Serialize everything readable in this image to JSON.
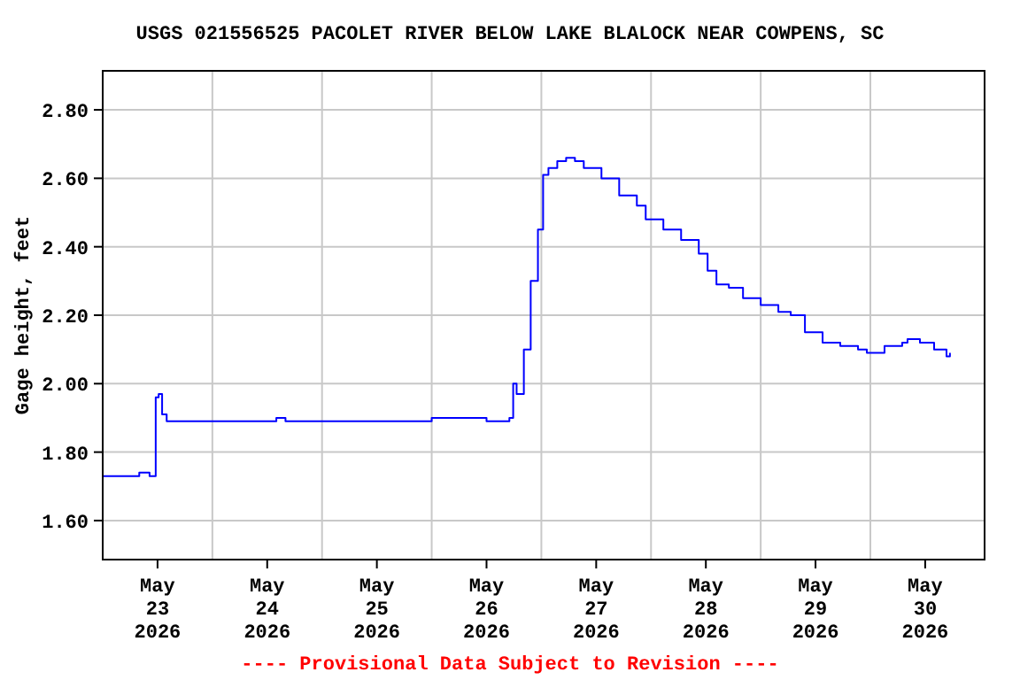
{
  "chart_data": {
    "type": "step",
    "title": "USGS 021556525 PACOLET RIVER BELOW LAKE BLALOCK NEAR COWPENS, SC",
    "ylabel": "Gage height, feet",
    "annotations": [
      "---- Provisional Data Subject to Revision ----"
    ],
    "x": [
      "2026-05-22T12:00",
      "2026-05-22T19:30",
      "2026-05-22T20:00",
      "2026-05-22T22:00",
      "2026-05-22T22:15",
      "2026-05-22T23:00",
      "2026-05-22T23:36",
      "2026-05-23T00:15",
      "2026-05-23T01:00",
      "2026-05-23T02:00",
      "2026-05-24T00:00",
      "2026-05-24T02:00",
      "2026-05-24T04:00",
      "2026-05-25T00:00",
      "2026-05-25T12:00",
      "2026-05-26T00:00",
      "2026-05-26T04:40",
      "2026-05-26T05:00",
      "2026-05-26T05:50",
      "2026-05-26T06:35",
      "2026-05-26T08:10",
      "2026-05-26T09:40",
      "2026-05-26T11:15",
      "2026-05-26T12:23",
      "2026-05-26T13:33",
      "2026-05-26T15:29",
      "2026-05-26T17:25",
      "2026-05-26T19:21",
      "2026-05-26T21:17",
      "2026-05-27T01:09",
      "2026-05-27T05:02",
      "2026-05-27T08:54",
      "2026-05-27T10:50",
      "2026-05-27T14:42",
      "2026-05-27T18:35",
      "2026-05-27T22:27",
      "2026-05-28T00:23",
      "2026-05-28T02:19",
      "2026-05-28T05:02",
      "2026-05-28T08:08",
      "2026-05-28T12:00",
      "2026-05-28T15:52",
      "2026-05-28T18:35",
      "2026-05-28T21:41",
      "2026-05-29T01:33",
      "2026-05-29T05:25",
      "2026-05-29T09:18",
      "2026-05-29T11:14",
      "2026-05-29T15:06",
      "2026-05-29T18:58",
      "2026-05-29T20:08",
      "2026-05-29T22:51",
      "2026-05-30T01:57",
      "2026-05-30T04:40",
      "2026-05-30T05:25"
    ],
    "series": [
      {
        "color": "#0000ff",
        "values": [
          1.73,
          1.73,
          1.74,
          1.74,
          1.73,
          1.73,
          1.96,
          1.97,
          1.91,
          1.89,
          1.89,
          1.9,
          1.89,
          1.89,
          1.9,
          1.89,
          1.89,
          1.9,
          2.0,
          1.97,
          2.1,
          2.3,
          2.45,
          2.61,
          2.63,
          2.65,
          2.66,
          2.65,
          2.63,
          2.6,
          2.55,
          2.52,
          2.48,
          2.45,
          2.42,
          2.38,
          2.33,
          2.29,
          2.28,
          2.25,
          2.23,
          2.21,
          2.2,
          2.15,
          2.12,
          2.11,
          2.1,
          2.09,
          2.11,
          2.12,
          2.13,
          2.12,
          2.1,
          2.08,
          2.09
        ]
      }
    ],
    "xlim": [
      "2026-05-22T12:00",
      "2026-05-30T13:00"
    ],
    "xticks": [
      {
        "value": "2026-05-23",
        "label": "May\n23\n2026"
      },
      {
        "value": "2026-05-23T12:00",
        "label": null
      },
      {
        "value": "2026-05-24",
        "label": "May\n24\n2026"
      },
      {
        "value": "2026-05-24T12:00",
        "label": null
      },
      {
        "value": "2026-05-25",
        "label": "May\n25\n2026"
      },
      {
        "value": "2026-05-25T12:00",
        "label": null
      },
      {
        "value": "2026-05-26",
        "label": "May\n26\n2026"
      },
      {
        "value": "2026-05-26T12:00",
        "label": null
      },
      {
        "value": "2026-05-27",
        "label": "May\n27\n2026"
      },
      {
        "value": "2026-05-27T12:00",
        "label": null
      },
      {
        "value": "2026-05-28",
        "label": "May\n28\n2026"
      },
      {
        "value": "2026-05-28T12:00",
        "label": null
      },
      {
        "value": "2026-05-29",
        "label": "May\n29\n2026"
      },
      {
        "value": "2026-05-29T12:00",
        "label": null
      },
      {
        "value": "2026-05-30",
        "label": "May\n30\n2026"
      }
    ],
    "ylim": [
      1.486,
      2.914
    ],
    "yticks": [
      {
        "value": 1.6,
        "label": "1.60"
      },
      {
        "value": 1.8,
        "label": "1.80"
      },
      {
        "value": 2.0,
        "label": "2.00"
      },
      {
        "value": 2.2,
        "label": "2.20"
      },
      {
        "value": 2.4,
        "label": "2.40"
      },
      {
        "value": 2.6,
        "label": "2.60"
      },
      {
        "value": 2.8,
        "label": "2.80"
      }
    ],
    "grid": true
  }
}
